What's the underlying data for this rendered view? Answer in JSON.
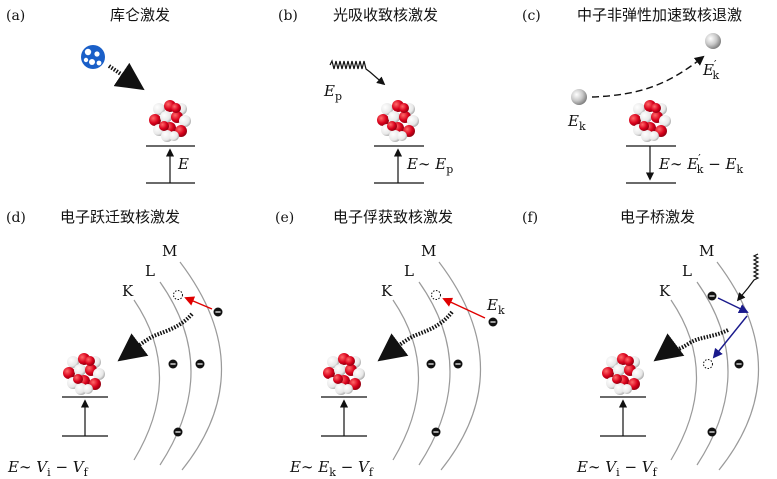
{
  "panels": {
    "a": {
      "tag": "(a)",
      "title": "库仑激发",
      "energy": "E"
    },
    "b": {
      "tag": "(b)",
      "title": "光吸收致核激发",
      "photon": "E_p",
      "energy": "E∼ E_p"
    },
    "c": {
      "tag": "(c)",
      "title": "中子非弹性加速致核退激",
      "neutron_in": "E_k",
      "neutron_out": "E′_k",
      "energy": "E∼ E′_k − E_k"
    },
    "d": {
      "tag": "(d)",
      "title": "电子跃迁致核激发",
      "shells": [
        "K",
        "L",
        "M"
      ],
      "energy": "E∼ V_i − V_f"
    },
    "e": {
      "tag": "(e)",
      "title": "电子俘获致核激发",
      "shells": [
        "K",
        "L",
        "M"
      ],
      "electron": "E_k",
      "energy": "E∼ E_k − V_f"
    },
    "f": {
      "tag": "(f)",
      "title": "电子桥激发",
      "shells": [
        "K",
        "L",
        "M"
      ],
      "energy": "E∼ V_i − V_f"
    }
  },
  "colors": {
    "nucleon_red": "#d9001b",
    "nucleon_white": "#ffffff",
    "ion_blue": "#1a5fc8",
    "arrow_red": "#e00000",
    "arrow_blue": "#1a1a8c",
    "shell": "#9a9a9a",
    "electron": "#111111"
  }
}
